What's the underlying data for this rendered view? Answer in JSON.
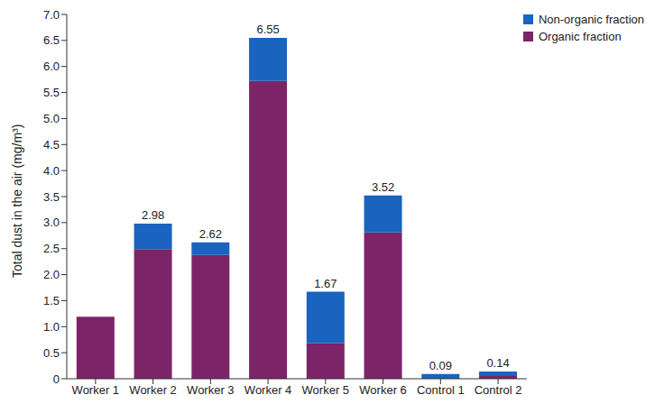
{
  "chart_data": {
    "type": "bar",
    "stacked": true,
    "y_label": "Total dust in the air (mg/m³)",
    "categories": [
      "Worker 1",
      "Worker 2",
      "Worker 3",
      "Worker 4",
      "Worker 5",
      "Worker 6",
      "Control 1",
      "Control 2"
    ],
    "series": [
      {
        "name": "Organic fraction",
        "color": "#7b2468",
        "values": [
          1.19,
          2.49,
          2.38,
          5.72,
          0.68,
          2.81,
          0,
          0.05
        ]
      },
      {
        "name": "Non-organic fraction",
        "color": "#1a63be",
        "values": [
          0,
          0.49,
          0.24,
          0.83,
          0.99,
          0.71,
          0.09,
          0.09
        ]
      }
    ],
    "totals": [
      1.19,
      2.98,
      2.62,
      6.55,
      1.67,
      3.52,
      0.09,
      0.14
    ],
    "ylim": [
      0,
      7
    ],
    "yticks": [
      0,
      0.5,
      {
        "value": 1,
        "label": "1.0"
      },
      1.5,
      {
        "value": 2,
        "label": "2.0"
      },
      2.5,
      {
        "value": 3,
        "label": "3.0"
      },
      3.5,
      {
        "value": 4,
        "label": "4.0"
      },
      4.5,
      {
        "value": 5,
        "label": "5.0"
      },
      5.5,
      {
        "value": 6,
        "label": "6.0"
      },
      6.5,
      {
        "value": 7,
        "label": "7.0"
      }
    ],
    "legend": "upper right",
    "grid": false
  }
}
